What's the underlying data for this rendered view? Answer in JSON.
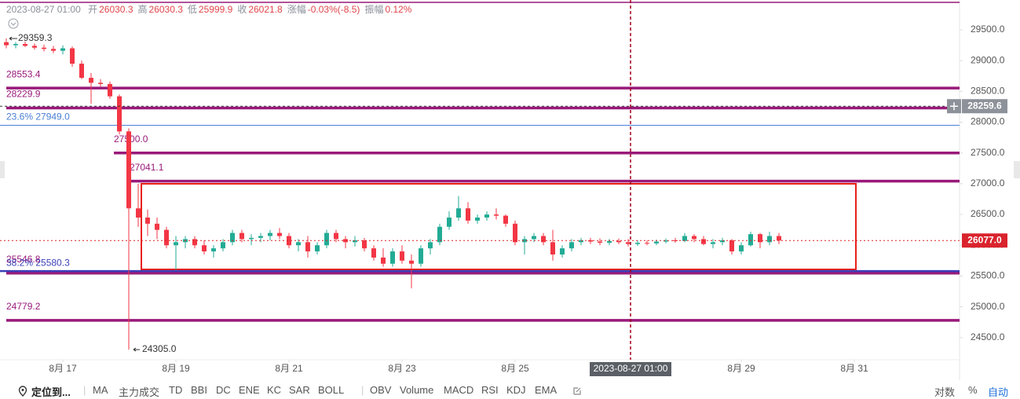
{
  "header": {
    "time": "2023-08-27 01:00",
    "fields": [
      {
        "label": "开",
        "value": 26030.3
      },
      {
        "label": "高",
        "value": 26030.3
      },
      {
        "label": "低",
        "value": 25999.9
      },
      {
        "label": "收",
        "value": 26021.8
      },
      {
        "label": "涨幅",
        "value": "-0.03%(-8.5)"
      },
      {
        "label": "振幅",
        "value": "0.12%"
      }
    ]
  },
  "chart_data": {
    "type": "candlestick",
    "x": [
      "2023-08-16 00:00",
      "2023-08-16 04:00",
      "2023-08-16 08:00",
      "2023-08-16 12:00",
      "2023-08-16 16:00",
      "2023-08-16 20:00",
      "2023-08-17 00:00",
      "2023-08-17 04:00",
      "2023-08-17 08:00",
      "2023-08-17 12:00",
      "2023-08-17 16:00",
      "2023-08-17 20:00",
      "2023-08-18 00:00",
      "2023-08-18 04:00",
      "2023-08-18 08:00",
      "2023-08-18 12:00",
      "2023-08-18 16:00",
      "2023-08-18 20:00",
      "2023-08-19 00:00",
      "2023-08-19 04:00",
      "2023-08-19 08:00",
      "2023-08-19 12:00",
      "2023-08-19 16:00",
      "2023-08-19 20:00",
      "2023-08-20 00:00",
      "2023-08-20 04:00",
      "2023-08-20 08:00",
      "2023-08-20 12:00",
      "2023-08-20 16:00",
      "2023-08-20 20:00",
      "2023-08-21 00:00",
      "2023-08-21 04:00",
      "2023-08-21 08:00",
      "2023-08-21 12:00",
      "2023-08-21 16:00",
      "2023-08-21 20:00",
      "2023-08-22 00:00",
      "2023-08-22 04:00",
      "2023-08-22 08:00",
      "2023-08-22 12:00",
      "2023-08-22 16:00",
      "2023-08-22 20:00",
      "2023-08-23 00:00",
      "2023-08-23 04:00",
      "2023-08-23 08:00",
      "2023-08-23 12:00",
      "2023-08-23 16:00",
      "2023-08-23 20:00",
      "2023-08-24 00:00",
      "2023-08-24 04:00",
      "2023-08-24 08:00",
      "2023-08-24 12:00",
      "2023-08-24 16:00",
      "2023-08-24 20:00",
      "2023-08-25 00:00",
      "2023-08-25 04:00",
      "2023-08-25 08:00",
      "2023-08-25 12:00",
      "2023-08-25 16:00",
      "2023-08-25 20:00",
      "2023-08-26 00:00",
      "2023-08-26 04:00",
      "2023-08-26 08:00",
      "2023-08-26 12:00",
      "2023-08-26 16:00",
      "2023-08-26 20:00",
      "2023-08-27 00:00",
      "2023-08-27 04:00",
      "2023-08-27 08:00",
      "2023-08-27 12:00",
      "2023-08-27 16:00",
      "2023-08-27 20:00",
      "2023-08-28 00:00",
      "2023-08-28 04:00",
      "2023-08-28 08:00",
      "2023-08-28 12:00",
      "2023-08-28 16:00",
      "2023-08-28 20:00",
      "2023-08-29 00:00",
      "2023-08-29 04:00",
      "2023-08-29 08:00",
      "2023-08-29 12:00",
      "2023-08-29 16:00"
    ],
    "open": [
      29300,
      29250,
      29270,
      29240,
      29210,
      29190,
      29160,
      29200,
      28950,
      28720,
      28640,
      28620,
      28420,
      27850,
      26600,
      26450,
      26350,
      26250,
      26000,
      26050,
      26100,
      26000,
      25900,
      25950,
      26050,
      26200,
      26100,
      26120,
      26150,
      26200,
      26150,
      26000,
      26050,
      25900,
      26000,
      26200,
      26100,
      26050,
      26080,
      25950,
      25800,
      25700,
      25900,
      25750,
      25700,
      25950,
      26050,
      26300,
      26450,
      26600,
      26400,
      26450,
      26500,
      26480,
      26350,
      26050,
      26100,
      26150,
      26050,
      25850,
      25950,
      26050,
      26080,
      26060,
      26040,
      26070,
      26050,
      26020,
      26040,
      26030,
      26060,
      26080,
      26070,
      26150,
      26100,
      26020,
      26050,
      26080,
      25900,
      26000,
      26180,
      26050,
      26150
    ],
    "high": [
      29359.3,
      29300,
      29310,
      29280,
      29260,
      29240,
      29250,
      29230,
      29000,
      28800,
      28700,
      28660,
      28450,
      27900,
      27000,
      26580,
      26450,
      26300,
      26150,
      26150,
      26150,
      26080,
      26000,
      26100,
      26250,
      26250,
      26180,
      26200,
      26250,
      26280,
      26200,
      26100,
      26150,
      26050,
      26250,
      26250,
      26150,
      26150,
      26120,
      26000,
      25950,
      25950,
      26000,
      25850,
      26000,
      26100,
      26350,
      26550,
      26800,
      26700,
      26500,
      26550,
      26600,
      26500,
      26400,
      26150,
      26200,
      26200,
      26250,
      26000,
      26100,
      26120,
      26120,
      26110,
      26100,
      26110,
      26100,
      26080,
      26080,
      26090,
      26110,
      26120,
      26200,
      26180,
      26150,
      26100,
      26120,
      26100,
      26050,
      26220,
      26200,
      26220,
      26200
    ],
    "low": [
      29200,
      29200,
      29220,
      29180,
      29150,
      29120,
      29100,
      28900,
      28700,
      28300,
      28580,
      28380,
      27800,
      24305,
      26300,
      26150,
      26100,
      25950,
      25600,
      25950,
      25950,
      25850,
      25800,
      25900,
      26000,
      26050,
      26000,
      26050,
      26080,
      26100,
      25950,
      25900,
      25800,
      25850,
      25950,
      26050,
      25950,
      25980,
      25900,
      25750,
      25650,
      25650,
      25700,
      25300,
      25650,
      25850,
      26000,
      26250,
      26400,
      26350,
      26350,
      26400,
      26420,
      26300,
      26000,
      25850,
      26050,
      26000,
      25750,
      25800,
      25900,
      26000,
      26020,
      26000,
      26000,
      26020,
      25980,
      25990,
      26000,
      26000,
      26030,
      26040,
      26050,
      26050,
      26000,
      25950,
      26000,
      25850,
      25850,
      25980,
      25950,
      26000,
      26020
    ],
    "close": [
      29250,
      29270,
      29240,
      29210,
      29190,
      29160,
      29200,
      28950,
      28720,
      28640,
      28620,
      28420,
      27850,
      26600,
      26450,
      26350,
      26250,
      26000,
      26050,
      26100,
      26000,
      25900,
      25950,
      26050,
      26200,
      26100,
      26120,
      26150,
      26200,
      26150,
      26000,
      26050,
      25900,
      26000,
      26200,
      26100,
      26050,
      26080,
      25950,
      25800,
      25700,
      25900,
      25750,
      25700,
      25950,
      26050,
      26300,
      26450,
      26600,
      26400,
      26450,
      26500,
      26480,
      26350,
      26050,
      26100,
      26150,
      26050,
      25850,
      25950,
      26050,
      26080,
      26060,
      26040,
      26070,
      26050,
      26020,
      26040,
      26030,
      26060,
      26080,
      26070,
      26150,
      26100,
      26020,
      26050,
      26080,
      25900,
      26000,
      26180,
      26050,
      26150,
      26077
    ],
    "up_color": "#22ab94",
    "down_color": "#f23645",
    "xlim": [
      "2023-08-15 21:20",
      "2023-09-01 20:40"
    ],
    "xticks": [
      {
        "value": "2023-08-17",
        "label": "8月 17"
      },
      {
        "value": "2023-08-19",
        "label": "8月 19"
      },
      {
        "value": "2023-08-21",
        "label": "8月 21"
      },
      {
        "value": "2023-08-23",
        "label": "8月 23"
      },
      {
        "value": "2023-08-25",
        "label": "8月 25"
      },
      {
        "value": "2023-08-29",
        "label": "8月 29"
      },
      {
        "value": "2023-08-31",
        "label": "8月 31"
      }
    ],
    "ylim": [
      24140,
      29985
    ],
    "yticks": [
      {
        "value": 29500,
        "label": "29500.0"
      },
      {
        "value": 29000,
        "label": "29000.0"
      },
      {
        "value": 28500,
        "label": "28500.0"
      },
      {
        "value": 28000,
        "label": "28000.0"
      },
      {
        "value": 27500,
        "label": "27500.0"
      },
      {
        "value": 27000,
        "label": "27000.0"
      },
      {
        "value": 26500,
        "label": "26500.0"
      },
      {
        "value": 26000,
        "label": "26000.0"
      },
      {
        "value": 25500,
        "label": "25500.0"
      },
      {
        "value": 25000,
        "label": "25000.0"
      },
      {
        "value": 24500,
        "label": "24500.0"
      }
    ],
    "levels": [
      28553.4,
      28229.9,
      {
        "value": 27500,
        "label": "27500.0"
      },
      27041.1,
      25546.8,
      24779.2
    ],
    "level_color": "#99197a",
    "fib_levels": [
      {
        "value": 27949.0,
        "label": "23.6% 27949.0",
        "color": "#4a7fd4"
      },
      {
        "value": 25580.3,
        "label": "38.2% 25580.3",
        "color": "#3a3fb8"
      }
    ],
    "position_line": 28259.6,
    "last_price": {
      "value": 26077,
      "label": "26077.0"
    },
    "high_marker": 29359.3,
    "low_marker": {
      "value": 24305,
      "label": "24305.0"
    },
    "crosshair": "2023-08-27 01:00"
  },
  "toolbar": {
    "locate": "定位到...",
    "main": [
      "MA",
      "主力成交",
      "TD",
      "BBI",
      "DC",
      "ENE",
      "KC",
      "SAR",
      "BOLL"
    ],
    "sub": [
      "OBV",
      "Volume",
      "MACD",
      "RSI",
      "KDJ",
      "EMA"
    ],
    "right": [
      "对数",
      "%",
      "自动"
    ]
  }
}
